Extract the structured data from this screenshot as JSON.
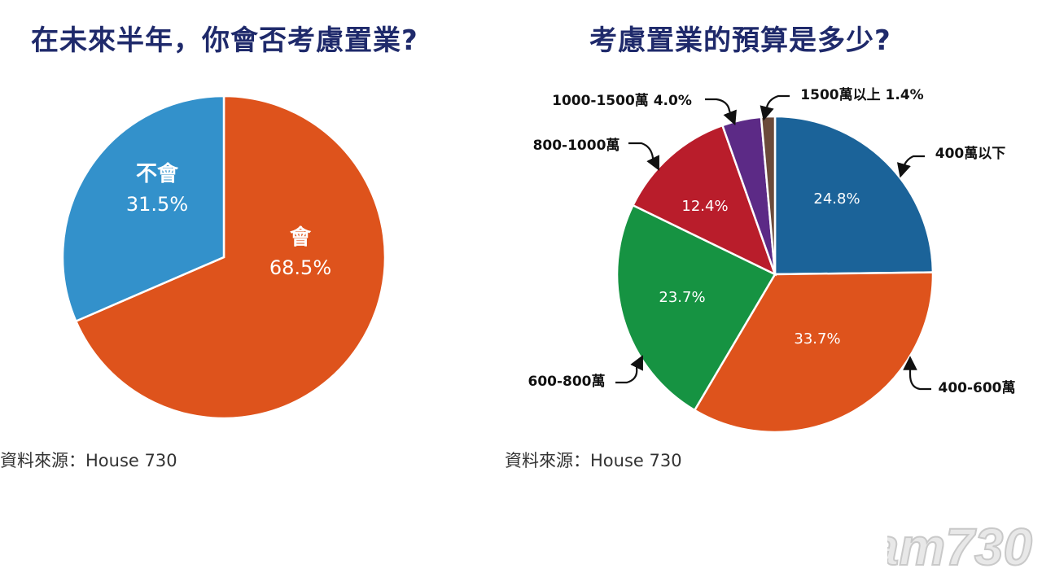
{
  "chart_data": [
    {
      "type": "pie",
      "title": "在未來半年，你會否考慮置業?",
      "series": [
        {
          "labels": [
            "會",
            "不會"
          ],
          "values": [
            68.5,
            31.5
          ],
          "value_labels": [
            "68.5%",
            "31.5%"
          ],
          "colors": [
            "#DE531C",
            "#3391CB"
          ]
        }
      ],
      "source": "資料來源：House 730"
    },
    {
      "type": "pie",
      "title": "考慮置業的預算是多少?",
      "series": [
        {
          "labels": [
            "400萬以下",
            "400-600萬",
            "600-800萬",
            "800-1000萬",
            "1000-1500萬",
            "1500萬以上"
          ],
          "values": [
            24.8,
            33.7,
            23.7,
            12.4,
            4.0,
            1.4
          ],
          "value_labels": [
            "24.8%",
            "33.7%",
            "23.7%",
            "12.4%",
            "",
            ""
          ],
          "callouts": [
            "400萬以下",
            "400-600萬",
            "600-800萬",
            "800-1000萬",
            "1000-1500萬 4.0%",
            "1500萬以上 1.4%"
          ],
          "colors": [
            "#1B6399",
            "#DE531C",
            "#169342",
            "#B91D2B",
            "#5C2A86",
            "#6B4A3A"
          ]
        }
      ],
      "source": "資料來源：House 730"
    }
  ],
  "watermark": "am730"
}
